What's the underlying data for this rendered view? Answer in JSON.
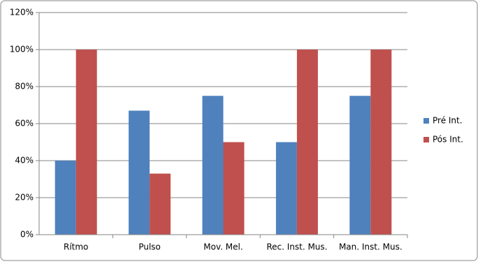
{
  "chart_data": {
    "type": "bar",
    "categories": [
      "Rítmo",
      "Pulso",
      "Mov. Mel.",
      "Rec. Inst. Mus.",
      "Man. Inst. Mus."
    ],
    "series": [
      {
        "name": "Pré Int.",
        "color": "#4f81bd",
        "values": [
          40,
          67,
          75,
          50,
          75
        ]
      },
      {
        "name": "Pós Int.",
        "color": "#c0504d",
        "values": [
          100,
          33,
          50,
          100,
          100
        ]
      }
    ],
    "ylim": [
      0,
      120
    ],
    "yticks": [
      {
        "value": 0,
        "label": "0%"
      },
      {
        "value": 20,
        "label": "20%"
      },
      {
        "value": 40,
        "label": "40%"
      },
      {
        "value": 60,
        "label": "60%"
      },
      {
        "value": 80,
        "label": "80%"
      },
      {
        "value": 100,
        "label": "100%"
      },
      {
        "value": 120,
        "label": "120%"
      }
    ],
    "grid": true,
    "legend": "right"
  }
}
